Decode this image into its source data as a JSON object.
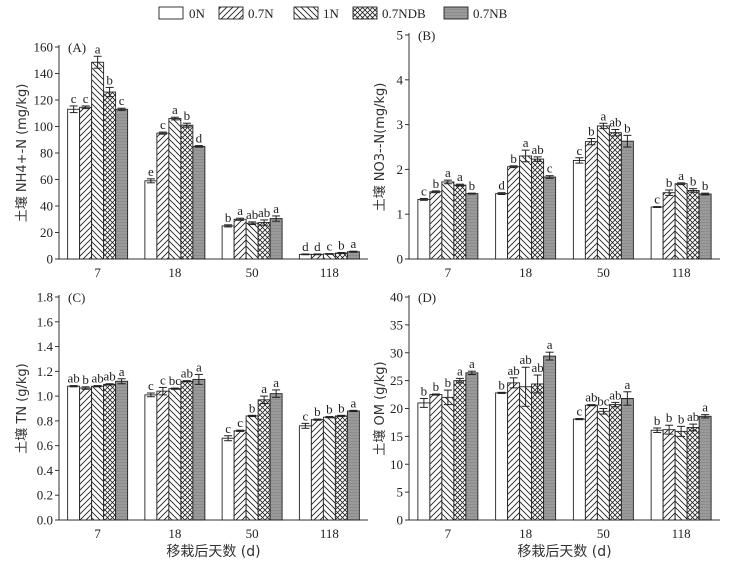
{
  "legend": {
    "items": [
      {
        "key": "0N",
        "label": "0N",
        "pattern": "blank"
      },
      {
        "key": "0.7N",
        "label": "0.7N",
        "pattern": "hatch-forward"
      },
      {
        "key": "1N",
        "label": "1N",
        "pattern": "hatch-backward"
      },
      {
        "key": "0.7NDB",
        "label": "0.7NDB",
        "pattern": "crosshatch"
      },
      {
        "key": "0.7NB",
        "label": "0.7NB",
        "pattern": "gray"
      }
    ]
  },
  "colors": {
    "gray_fill": "#9a9a9a",
    "stroke": "#222222",
    "background": "#ffffff"
  },
  "chart_data": [
    {
      "type": "bar",
      "panel": "(A)",
      "title": "",
      "ylabel": "土壤 NH4+-N (mg/kg)",
      "xlabel": "",
      "ylim": [
        0,
        160
      ],
      "yticks": [
        0,
        20,
        40,
        60,
        80,
        100,
        120,
        140,
        160
      ],
      "ytick_labels": [
        "0",
        "20",
        "40",
        "60",
        "80",
        "100",
        "120",
        "140",
        "160"
      ],
      "categories": [
        "7",
        "18",
        "50",
        "118"
      ],
      "series": [
        {
          "name": "0N",
          "values": [
            113,
            59,
            25,
            3.5
          ],
          "errors": [
            2.5,
            1.5,
            0.8,
            0.3
          ],
          "letters": [
            "c",
            "e",
            "b",
            "d"
          ]
        },
        {
          "name": "0.7N",
          "values": [
            114.5,
            95,
            30,
            3.5
          ],
          "errors": [
            1,
            0.8,
            0.8,
            0.3
          ],
          "letters": [
            "c",
            "c",
            "a",
            "d"
          ]
        },
        {
          "name": "1N",
          "values": [
            148.5,
            106,
            27,
            3.8
          ],
          "errors": [
            4.5,
            1,
            1,
            0.3
          ],
          "letters": [
            "a",
            "a",
            "ab",
            "c"
          ]
        },
        {
          "name": "0.7NDB",
          "values": [
            126,
            101,
            27.5,
            4.5
          ],
          "errors": [
            3.5,
            1.5,
            2,
            0.4
          ],
          "letters": [
            "b",
            "b",
            "ab",
            "b"
          ]
        },
        {
          "name": "0.7NB",
          "values": [
            113,
            85,
            30.5,
            5.5
          ],
          "errors": [
            0.8,
            0.6,
            2,
            0.4
          ],
          "letters": [
            "c",
            "d",
            "a",
            "a"
          ]
        }
      ]
    },
    {
      "type": "bar",
      "panel": "(B)",
      "title": "",
      "ylabel": "土壤 NO3--N(mg/kg)",
      "xlabel": "",
      "ylim": [
        0,
        5
      ],
      "yticks": [
        0,
        1,
        2,
        3,
        4,
        5
      ],
      "ytick_labels": [
        "0",
        "1",
        "2",
        "3",
        "4",
        "5"
      ],
      "categories": [
        "7",
        "18",
        "50",
        "118"
      ],
      "series": [
        {
          "name": "0N",
          "values": [
            1.33,
            1.46,
            2.2,
            1.16
          ],
          "errors": [
            0.02,
            0.02,
            0.06,
            0.01
          ],
          "letters": [
            "c",
            "d",
            "c",
            "c"
          ]
        },
        {
          "name": "0.7N",
          "values": [
            1.5,
            2.06,
            2.62,
            1.48
          ],
          "errors": [
            0.02,
            0.02,
            0.07,
            0.06
          ],
          "letters": [
            "b",
            "b",
            "b",
            "b"
          ]
        },
        {
          "name": "1N",
          "values": [
            1.72,
            2.3,
            2.97,
            1.68
          ],
          "errors": [
            0.04,
            0.13,
            0.06,
            0.02
          ],
          "letters": [
            "a",
            "a",
            "a",
            "a"
          ]
        },
        {
          "name": "0.7NDB",
          "values": [
            1.65,
            2.23,
            2.82,
            1.53
          ],
          "errors": [
            0.02,
            0.05,
            0.07,
            0.04
          ],
          "letters": [
            "a",
            "ab",
            "ab",
            "b"
          ]
        },
        {
          "name": "0.7NB",
          "values": [
            1.46,
            1.83,
            2.63,
            1.45
          ],
          "errors": [
            0.01,
            0.03,
            0.13,
            0.02
          ],
          "letters": [
            "b",
            "c",
            "b",
            "b"
          ]
        }
      ]
    },
    {
      "type": "bar",
      "panel": "(C)",
      "title": "",
      "ylabel": "土壤 TN (g/kg)",
      "xlabel": "移栽后天数 (d)",
      "ylim": [
        0,
        1.8
      ],
      "yticks": [
        0,
        0.2,
        0.4,
        0.6,
        0.8,
        1.0,
        1.2,
        1.4,
        1.6,
        1.8
      ],
      "ytick_labels": [
        "0.0",
        "0.2",
        "0.4",
        "0.6",
        "0.8",
        "1.0",
        "1.2",
        "1.4",
        "1.6",
        "1.8"
      ],
      "categories": [
        "7",
        "18",
        "50",
        "118"
      ],
      "series": [
        {
          "name": "0N",
          "values": [
            1.08,
            1.01,
            0.66,
            0.76
          ],
          "errors": [
            0.005,
            0.015,
            0.02,
            0.02
          ],
          "letters": [
            "ab",
            "c",
            "c",
            "c"
          ]
        },
        {
          "name": "0.7N",
          "values": [
            1.065,
            1.04,
            0.72,
            0.81
          ],
          "errors": [
            0.01,
            0.03,
            0.005,
            0.005
          ],
          "letters": [
            "b",
            "c",
            "c",
            "b"
          ]
        },
        {
          "name": "1N",
          "values": [
            1.08,
            1.06,
            0.84,
            0.83
          ],
          "errors": [
            0.005,
            0.005,
            0.005,
            0.005
          ],
          "letters": [
            "ab",
            "bc",
            "b",
            "b"
          ]
        },
        {
          "name": "0.7NDB",
          "values": [
            1.095,
            1.12,
            0.97,
            0.84
          ],
          "errors": [
            0.005,
            0.005,
            0.03,
            0.005
          ],
          "letters": [
            "ab",
            "ab",
            "a",
            "b"
          ]
        },
        {
          "name": "0.7NB",
          "values": [
            1.12,
            1.135,
            1.02,
            0.88
          ],
          "errors": [
            0.02,
            0.04,
            0.03,
            0.005
          ],
          "letters": [
            "a",
            "a",
            "a",
            "a"
          ]
        }
      ]
    },
    {
      "type": "bar",
      "panel": "(D)",
      "title": "",
      "ylabel": "土壤 OM (g/kg)",
      "xlabel": "移栽后天数 (d)",
      "ylim": [
        0,
        40
      ],
      "yticks": [
        0,
        5,
        10,
        15,
        20,
        25,
        30,
        35,
        40
      ],
      "ytick_labels": [
        "0",
        "5",
        "10",
        "15",
        "20",
        "25",
        "30",
        "35",
        "40"
      ],
      "categories": [
        "7",
        "18",
        "50",
        "118"
      ],
      "series": [
        {
          "name": "0N",
          "values": [
            21,
            22.8,
            18.1,
            16.1
          ],
          "errors": [
            0.8,
            0.1,
            0.1,
            0.4
          ],
          "letters": [
            "b",
            "b",
            "c",
            "b"
          ]
        },
        {
          "name": "0.7N",
          "values": [
            22.5,
            24.6,
            20.6,
            16.2
          ],
          "errors": [
            0.1,
            0.9,
            0.1,
            0.8
          ],
          "letters": [
            "b",
            "ab",
            "ab",
            "b"
          ]
        },
        {
          "name": "1N",
          "values": [
            22,
            23.9,
            19.5,
            15.9
          ],
          "errors": [
            1.3,
            3.5,
            0.5,
            0.9
          ],
          "letters": [
            "b",
            "ab",
            "bc",
            "b"
          ]
        },
        {
          "name": "0.7NDB",
          "values": [
            25,
            24.4,
            20.7,
            16.6
          ],
          "errors": [
            0.4,
            1.6,
            0.4,
            0.6
          ],
          "letters": [
            "a",
            "ab",
            "ab",
            "ab"
          ]
        },
        {
          "name": "0.7NB",
          "values": [
            26.4,
            29.4,
            21.8,
            18.6
          ],
          "errors": [
            0.3,
            0.7,
            1.2,
            0.3
          ],
          "letters": [
            "a",
            "a",
            "a",
            "a"
          ]
        }
      ]
    }
  ]
}
